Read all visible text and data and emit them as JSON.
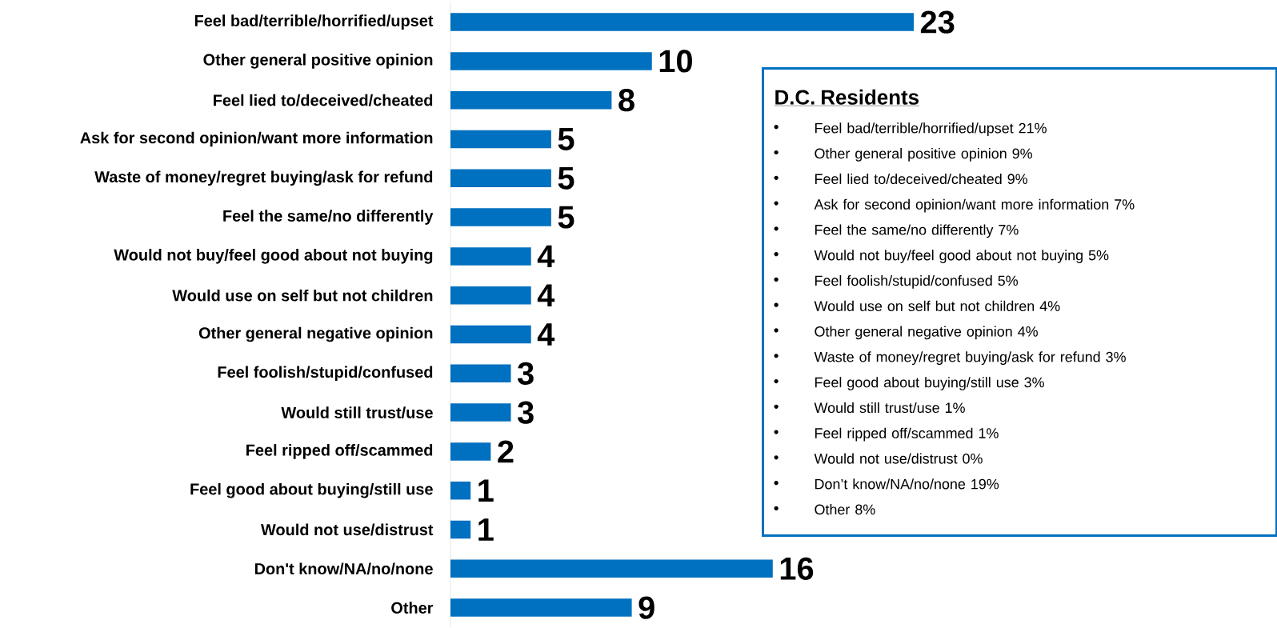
{
  "chart_data": {
    "type": "bar",
    "orientation": "horizontal",
    "data_labels": true,
    "color": "#0070c0",
    "categories": [
      "Feel bad/terrible/horrified/upset",
      "Other general positive opinion",
      "Feel lied to/deceived/cheated",
      "Ask for second opinion/want more information",
      "Waste of money/regret buying/ask for refund",
      "Feel the same/no differently",
      "Would not buy/feel good about not buying",
      "Would use on self but not children",
      "Other general negative opinion",
      "Feel foolish/stupid/confused",
      "Would still trust/use",
      "Feel ripped off/scammed",
      "Feel good about buying/still use",
      "Would not use/distrust",
      "Don't know/NA/no/none",
      "Other"
    ],
    "values": [
      23,
      10,
      8,
      5,
      5,
      5,
      4,
      4,
      4,
      3,
      3,
      2,
      1,
      1,
      16,
      9
    ],
    "annotations": [
      "D.C. Residents",
      "Feel bad/terrible/horrified/upset 21%",
      "Other general positive opinion 9%",
      "Feel lied to/deceived/cheated 9%",
      "Ask for second opinion/want more information 7%",
      "Feel the same/no differently 7%",
      "Would not buy/feel good about not buying 5%",
      "Feel foolish/stupid/confused 5%",
      "Would use on self but not children 4%",
      "Other general negative opinion 4%",
      "Waste of money/regret buying/ask for refund 3%",
      "Feel good about buying/still use 3%",
      "Would still trust/use 1%",
      "Feel ripped off/scammed 1%",
      "Would not use/distrust 0%",
      "Don’t know/NA/no/none 19%",
      "Other 8%"
    ]
  }
}
